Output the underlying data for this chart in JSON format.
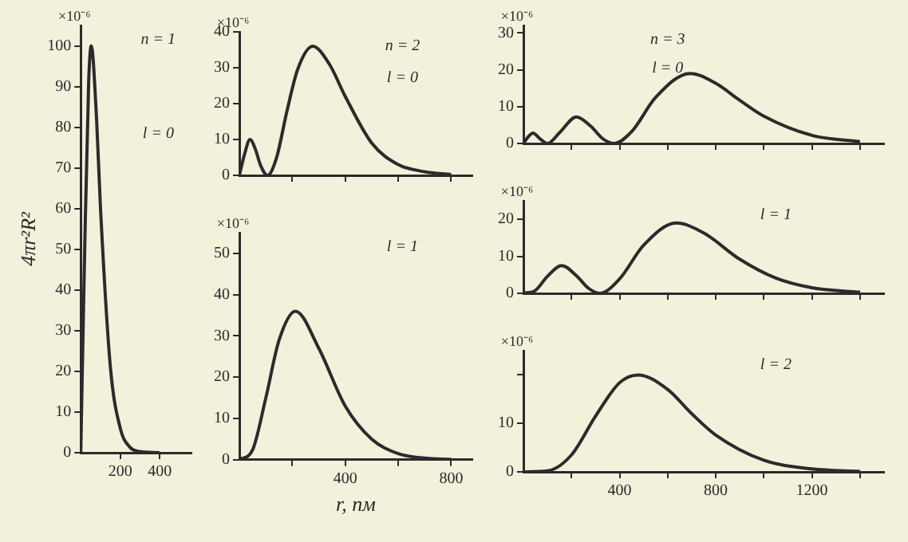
{
  "chart_data": [
    {
      "type": "line",
      "ylabel": "4πr²R²",
      "annotations": [
        "×10⁻⁶",
        "n = 1",
        "l = 0"
      ],
      "color": "#2b2b2b",
      "x": [
        0,
        20,
        40,
        53,
        80,
        100,
        150,
        200,
        250,
        300,
        400
      ],
      "values": [
        0,
        50,
        91,
        100,
        82,
        60,
        21,
        6,
        1.3,
        0.3,
        0
      ],
      "xlim": [
        0,
        560
      ],
      "xticks": [
        200,
        400
      ],
      "ylim": [
        0,
        105
      ],
      "yticks": [
        0,
        10,
        20,
        30,
        40,
        50,
        60,
        70,
        80,
        90,
        100
      ]
    },
    {
      "type": "line",
      "annotations": [
        "×10⁻⁶",
        "n = 2",
        "l = 0"
      ],
      "color": "#2b2b2b",
      "x": [
        0,
        20,
        40,
        60,
        80,
        106,
        140,
        180,
        220,
        277,
        340,
        400,
        500,
        600,
        700,
        800
      ],
      "values": [
        0,
        6,
        10,
        7.4,
        2.8,
        0,
        4.8,
        18,
        29.5,
        36,
        31,
        22,
        9,
        3,
        1,
        0.2
      ],
      "xlim": [
        0,
        880
      ],
      "xticks": [
        {
          "value": 200,
          "label": null
        },
        400,
        {
          "value": 600,
          "label": null
        },
        800
      ],
      "ylim": [
        0,
        40
      ],
      "yticks": [
        0,
        10,
        20,
        30,
        40
      ],
      "tick_labels": "y"
    },
    {
      "type": "line",
      "xlabel": "r, пм",
      "annotations": [
        "×10⁻⁶",
        "l = 1"
      ],
      "color": "#2b2b2b",
      "x": [
        0,
        50,
        100,
        150,
        212,
        300,
        400,
        500,
        600,
        700,
        800
      ],
      "values": [
        0,
        2.4,
        15,
        29,
        36,
        27,
        13,
        5,
        1.5,
        0.4,
        0.1
      ],
      "xlim": [
        0,
        880
      ],
      "xticks": [
        {
          "value": 200,
          "label": null
        },
        400,
        {
          "value": 600,
          "label": null
        },
        800
      ],
      "ylim": [
        0,
        55
      ],
      "yticks": [
        0,
        10,
        20,
        30,
        40,
        50
      ]
    },
    {
      "type": "line",
      "annotations": [
        "×10⁻⁶",
        "n = 3",
        "l = 0"
      ],
      "color": "#2b2b2b",
      "x": [
        0,
        20,
        40,
        70,
        100,
        150,
        220,
        280,
        330,
        376,
        450,
        550,
        693,
        800,
        900,
        1000,
        1200,
        1400
      ],
      "values": [
        0,
        1.8,
        2.8,
        1.2,
        0,
        2.9,
        7.2,
        4.7,
        1.3,
        0,
        3.2,
        12.5,
        19,
        16.3,
        11.7,
        7.4,
        2.2,
        0.5
      ],
      "xlim": [
        0,
        1500
      ],
      "xticks": [
        {
          "value": 200,
          "label": null
        },
        400,
        {
          "value": 600,
          "label": null
        },
        800,
        {
          "value": 1000,
          "label": null
        },
        1200,
        {
          "value": 1400,
          "label": null
        }
      ],
      "ylim": [
        0,
        32
      ],
      "yticks": [
        0,
        10,
        20,
        30
      ],
      "tick_labels": "y"
    },
    {
      "type": "line",
      "annotations": [
        "×10⁻⁶",
        "l = 1"
      ],
      "color": "#2b2b2b",
      "x": [
        0,
        50,
        100,
        159,
        220,
        270,
        318,
        400,
        500,
        636,
        750,
        900,
        1050,
        1200,
        1400
      ],
      "values": [
        0,
        0.8,
        4.6,
        7.5,
        4.8,
        1.4,
        0,
        3.9,
        13,
        19,
        16.3,
        9.2,
        4.1,
        1.5,
        0.3
      ],
      "xlim": [
        0,
        1500
      ],
      "xticks": [
        {
          "value": 200,
          "label": null
        },
        400,
        {
          "value": 600,
          "label": null
        },
        800,
        {
          "value": 1000,
          "label": null
        },
        1200,
        {
          "value": 1400,
          "label": null
        }
      ],
      "ylim": [
        0,
        25
      ],
      "yticks": [
        0,
        10,
        20
      ],
      "tick_labels": "y"
    },
    {
      "type": "line",
      "annotations": [
        "×10⁻⁶",
        "l = 2"
      ],
      "color": "#2b2b2b",
      "x": [
        0,
        100,
        200,
        300,
        400,
        477,
        600,
        700,
        800,
        1000,
        1200,
        1400
      ],
      "values": [
        0,
        0.2,
        3.5,
        11.5,
        18.4,
        20,
        17,
        12,
        7.6,
        2.4,
        0.6,
        0.1
      ],
      "xlim": [
        0,
        1500
      ],
      "xticks": [
        {
          "value": 200,
          "label": null
        },
        400,
        {
          "value": 600,
          "label": null
        },
        800,
        {
          "value": 1000,
          "label": null
        },
        1200,
        {
          "value": 1400,
          "label": null
        }
      ],
      "ylim": [
        0,
        25
      ],
      "yticks": [
        0,
        10,
        {
          "value": 20,
          "label": null
        }
      ]
    }
  ]
}
